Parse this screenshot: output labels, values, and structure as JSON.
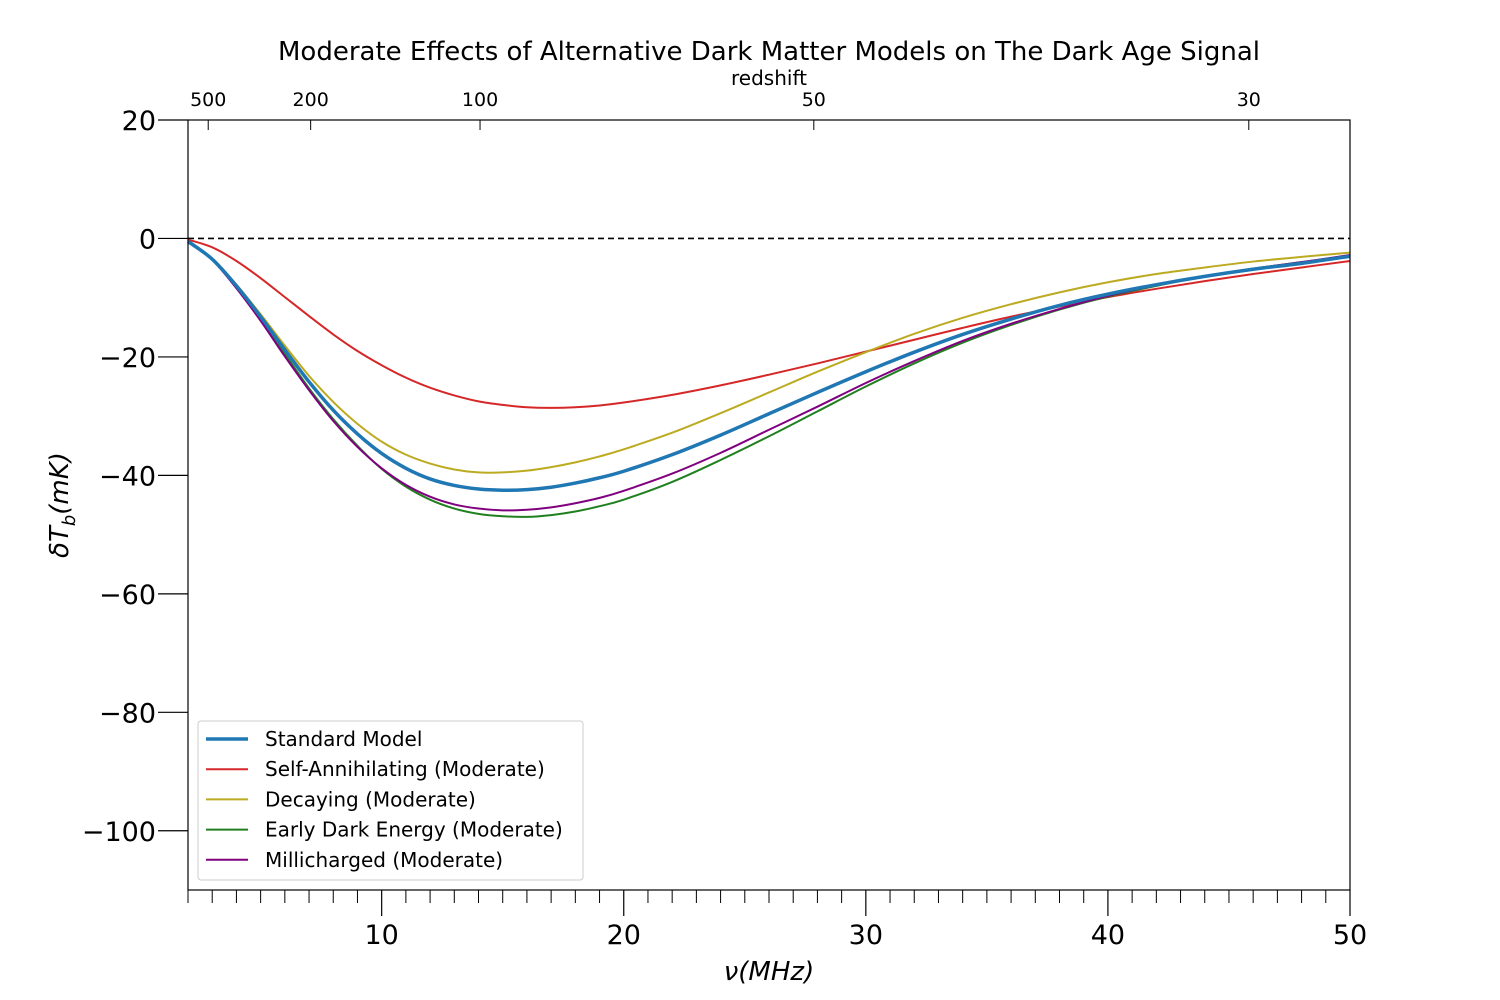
{
  "chart_data": {
    "type": "line",
    "title": "Moderate Effects of Alternative Dark Matter Models on The Dark Age Signal",
    "xlabel": "ν(MHz)",
    "ylabel_main": "δT",
    "ylabel_sub": "b",
    "ylabel_unit": "(mK)",
    "top_axis_label": "redshift",
    "xlim": [
      2,
      50
    ],
    "ylim": [
      -110,
      20
    ],
    "x_ticks": [
      10,
      20,
      30,
      40,
      50
    ],
    "x_tick_labels": [
      "10",
      "20",
      "30",
      "40",
      "50"
    ],
    "y_ticks": [
      20,
      0,
      -20,
      -40,
      -60,
      -80,
      -100
    ],
    "y_tick_labels": [
      "20",
      "0",
      "−20",
      "−40",
      "−60",
      "−80",
      "−100"
    ],
    "redshift_ticks": [
      500,
      200,
      100,
      50,
      30
    ],
    "redshift_tick_labels": [
      "500",
      "200",
      "100",
      "50",
      "30"
    ],
    "zero_line": 0,
    "legend_position": "lower-left",
    "x": [
      2,
      3,
      4,
      5,
      6,
      7,
      8,
      9,
      10,
      11,
      12,
      13,
      14,
      15,
      16,
      17,
      18,
      19,
      20,
      22,
      24,
      26,
      28,
      30,
      32,
      34,
      36,
      38,
      40,
      42,
      44,
      46,
      48,
      50
    ],
    "series": [
      {
        "name": "Standard Model",
        "color": "#1f77b4",
        "width": 3.5,
        "values": [
          -0.5,
          -3.5,
          -8.0,
          -13.2,
          -18.8,
          -24.2,
          -29.0,
          -33.0,
          -36.3,
          -38.8,
          -40.6,
          -41.7,
          -42.3,
          -42.5,
          -42.4,
          -42.0,
          -41.3,
          -40.4,
          -39.3,
          -36.5,
          -33.2,
          -29.6,
          -26.0,
          -22.5,
          -19.2,
          -16.2,
          -13.6,
          -11.3,
          -9.4,
          -7.8,
          -6.4,
          -5.2,
          -4.2,
          -3.0
        ]
      },
      {
        "name": "Self-Annihilating (Moderate)",
        "color": "#d62728",
        "width": 2,
        "values": [
          -0.2,
          -1.5,
          -3.8,
          -6.7,
          -9.9,
          -13.1,
          -16.2,
          -19.0,
          -21.4,
          -23.5,
          -25.2,
          -26.5,
          -27.5,
          -28.1,
          -28.5,
          -28.6,
          -28.5,
          -28.2,
          -27.7,
          -26.4,
          -24.8,
          -23.0,
          -21.1,
          -19.1,
          -17.1,
          -15.1,
          -13.2,
          -11.5,
          -9.9,
          -8.5,
          -7.2,
          -6.0,
          -4.9,
          -3.8
        ]
      },
      {
        "name": "Decaying (Moderate)",
        "color": "#bcaa20",
        "width": 2,
        "values": [
          -0.5,
          -3.4,
          -7.8,
          -12.8,
          -18.1,
          -23.2,
          -27.6,
          -31.3,
          -34.3,
          -36.5,
          -38.0,
          -39.0,
          -39.5,
          -39.5,
          -39.2,
          -38.6,
          -37.8,
          -36.8,
          -35.6,
          -32.8,
          -29.5,
          -26.0,
          -22.5,
          -19.2,
          -16.1,
          -13.4,
          -11.1,
          -9.1,
          -7.4,
          -6.0,
          -4.9,
          -3.9,
          -3.1,
          -2.4
        ]
      },
      {
        "name": "Early Dark Energy (Moderate)",
        "color": "#208020",
        "width": 2,
        "values": [
          -0.5,
          -3.6,
          -8.3,
          -13.7,
          -19.5,
          -25.3,
          -30.5,
          -35.0,
          -38.9,
          -41.9,
          -44.1,
          -45.6,
          -46.5,
          -46.9,
          -47.0,
          -46.7,
          -46.1,
          -45.2,
          -44.1,
          -41.1,
          -37.4,
          -33.4,
          -29.2,
          -25.0,
          -21.1,
          -17.6,
          -14.6,
          -12.0,
          -9.8,
          -8.0,
          -6.4,
          -5.1,
          -4.0,
          -2.9
        ]
      },
      {
        "name": "Millicharged (Moderate)",
        "color": "#800080",
        "width": 2,
        "values": [
          -0.5,
          -3.6,
          -8.4,
          -13.9,
          -19.9,
          -25.6,
          -30.8,
          -35.2,
          -38.8,
          -41.6,
          -43.6,
          -44.9,
          -45.6,
          -45.9,
          -45.8,
          -45.4,
          -44.7,
          -43.8,
          -42.6,
          -39.7,
          -36.2,
          -32.3,
          -28.4,
          -24.4,
          -20.7,
          -17.3,
          -14.4,
          -11.9,
          -9.7,
          -7.9,
          -6.4,
          -5.1,
          -4.0,
          -2.8
        ]
      }
    ]
  }
}
